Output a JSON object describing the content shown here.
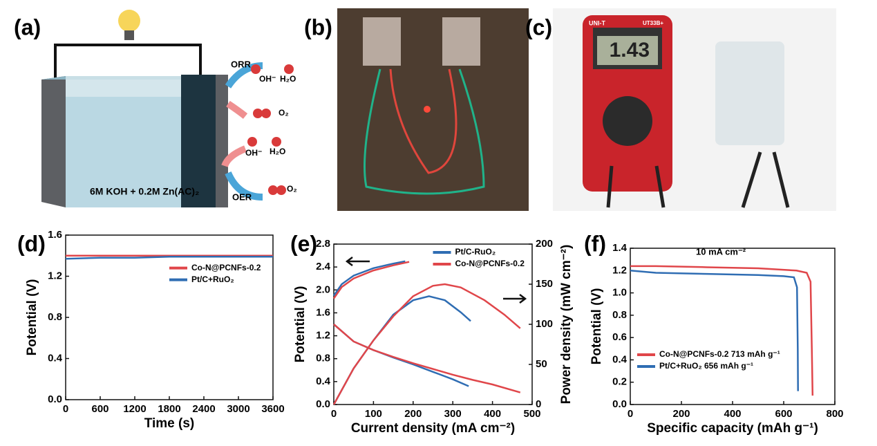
{
  "panels": {
    "a": {
      "label": "(a)",
      "texts": [
        "ORR",
        "OH⁻",
        "H₂O",
        "O₂",
        "OH⁻",
        "H₂O",
        "OER",
        "O₂"
      ],
      "electrolyte": "6M KOH + 0.2M Zn(AC)₂"
    },
    "b": {
      "label": "(b)"
    },
    "c": {
      "label": "(c)",
      "brand": "UNI-T",
      "model": "UT33B+",
      "display": "1.43"
    }
  },
  "chart_data": [
    {
      "type": "line",
      "panel_label": "(d)",
      "x_label": "Time (s)",
      "y_label": "Potential (V)",
      "xlim": [
        0,
        3600
      ],
      "xticks": [
        0,
        600,
        1200,
        1800,
        2400,
        3000,
        3600
      ],
      "ylim": [
        0,
        1.6
      ],
      "yticks": [
        {
          "value": 0,
          "label": "0.0"
        },
        0.4,
        0.8,
        1.2,
        1.6
      ],
      "legend": "right",
      "series": [
        {
          "name": "Co-N@PCNFs-0.2",
          "color": "#e0464a",
          "x": [
            0,
            600,
            1200,
            1800,
            2400,
            3000,
            3600
          ],
          "values": [
            1.4,
            1.4,
            1.4,
            1.4,
            1.4,
            1.4,
            1.4
          ]
        },
        {
          "name": "Pt/C+RuO₂",
          "color": "#2f6db3",
          "x": [
            0,
            600,
            1200,
            1800,
            2400,
            3000,
            3600
          ],
          "values": [
            1.37,
            1.38,
            1.38,
            1.39,
            1.39,
            1.39,
            1.39
          ]
        }
      ]
    },
    {
      "type": "line",
      "panel_label": "(e)",
      "x_label": "Current density (mA cm⁻²)",
      "y_label": "Potential (V)",
      "y2_label": "Power density (mW cm⁻²)",
      "xlim": [
        0,
        500
      ],
      "xticks": [
        0,
        100,
        200,
        300,
        400,
        500
      ],
      "ylim": [
        0,
        2.8
      ],
      "yticks": [
        {
          "value": 0,
          "label": "0.0"
        },
        0.4,
        0.8,
        1.2,
        1.6,
        {
          "value": 2,
          "label": "2.0"
        },
        2.4,
        2.8
      ],
      "y2lim": [
        0,
        200
      ],
      "y2ticks": [
        0,
        50,
        100,
        150,
        200
      ],
      "legend": "upper right",
      "series": [
        {
          "name": "Pt/C-RuO₂",
          "color": "#2f6db3",
          "x": [
            0,
            50,
            100,
            150,
            200,
            250,
            300,
            340
          ],
          "values": [
            1.4,
            1.1,
            0.95,
            0.82,
            0.7,
            0.57,
            0.44,
            0.32
          ]
        },
        {
          "name": "Co-N@PCNFs-0.2",
          "color": "#e0464a",
          "x": [
            0,
            50,
            100,
            150,
            200,
            250,
            300,
            350,
            400,
            470
          ],
          "values": [
            1.4,
            1.1,
            0.95,
            0.83,
            0.72,
            0.62,
            0.52,
            0.43,
            0.35,
            0.21
          ]
        },
        {
          "color": "#2f6db3",
          "x": [
            0,
            20,
            50,
            100,
            150,
            180
          ],
          "values": [
            1.9,
            2.1,
            2.25,
            2.38,
            2.46,
            2.5
          ]
        },
        {
          "color": "#e0464a",
          "x": [
            0,
            20,
            50,
            100,
            150,
            190
          ],
          "values": [
            1.85,
            2.05,
            2.2,
            2.34,
            2.43,
            2.49
          ]
        },
        {
          "color": "#2f6db3",
          "axis": "y2",
          "x": [
            0,
            50,
            100,
            150,
            200,
            240,
            280,
            320,
            345
          ],
          "values": [
            0,
            45,
            80,
            112,
            130,
            135,
            130,
            115,
            104
          ]
        },
        {
          "color": "#e0464a",
          "axis": "y2",
          "x": [
            0,
            50,
            100,
            150,
            200,
            250,
            280,
            320,
            380,
            430,
            470
          ],
          "values": [
            0,
            45,
            80,
            110,
            135,
            148,
            150,
            146,
            130,
            112,
            95
          ]
        }
      ]
    },
    {
      "type": "line",
      "panel_label": "(f)",
      "x_label": "Specific capacity (mAh g⁻¹)",
      "y_label": "Potential (V)",
      "annotation": "10 mA cm⁻²",
      "xlim": [
        0,
        800
      ],
      "xticks": [
        0,
        200,
        400,
        600,
        800
      ],
      "ylim": [
        0,
        1.4
      ],
      "yticks": [
        {
          "value": 0,
          "label": "0.0"
        },
        0.2,
        0.4,
        0.6,
        0.8,
        {
          "value": 1,
          "label": "1.0"
        },
        1.2,
        1.4
      ],
      "legend": "lower left",
      "series": [
        {
          "name": "Co-N@PCNFs-0.2  713 mAh g⁻¹",
          "color": "#e0464a",
          "x": [
            0,
            100,
            300,
            500,
            650,
            690,
            705,
            710,
            713
          ],
          "values": [
            1.24,
            1.24,
            1.23,
            1.22,
            1.2,
            1.18,
            1.1,
            0.5,
            0.08
          ]
        },
        {
          "name": "Pt/C+RuO₂  656 mAh g⁻¹",
          "color": "#2f6db3",
          "x": [
            0,
            100,
            300,
            500,
            600,
            640,
            652,
            655,
            656
          ],
          "values": [
            1.2,
            1.18,
            1.17,
            1.16,
            1.15,
            1.14,
            1.05,
            0.5,
            0.12
          ]
        }
      ]
    }
  ]
}
